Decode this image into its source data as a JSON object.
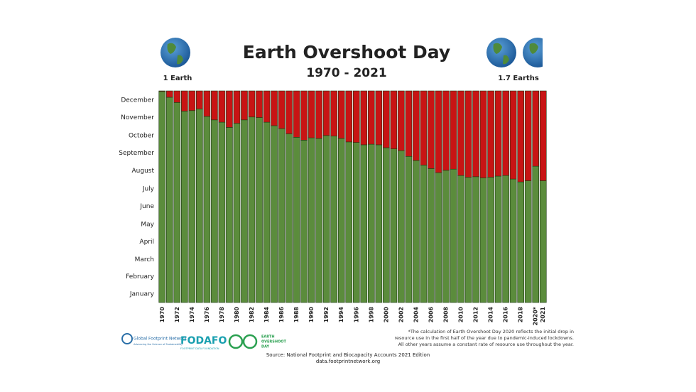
{
  "chart_data": {
    "type": "stacked_bar",
    "title": "Earth Overshoot Day",
    "subtitle": "1970 - 2021",
    "annotations": [
      "1 Earth",
      "1.7 Earths"
    ],
    "footnote": [
      "*The calculation of Earth Overshoot Day 2020 reflects the initial drop in",
      "resource use in the first half of the year due to pandemic-induced lockdowns.",
      "All other years assume a constant rate of resource use throughout the year."
    ],
    "source": [
      "Source: National Footprint and Biocapacity Accounts 2021 Edition",
      "data.footprintnetwork.org"
    ],
    "logos": [
      "Global Footprint Network",
      "Advancing the Science of Sustainability",
      "FODAFO",
      "FOOTPRINT DATA FOUNDATION",
      "EARTH",
      "OVERSHOOT",
      "DAY"
    ],
    "categories": [
      "1970",
      null,
      "1972",
      null,
      "1974",
      null,
      "1976",
      null,
      "1978",
      null,
      "1980",
      null,
      "1982",
      null,
      "1984",
      null,
      "1986",
      null,
      "1988",
      null,
      "1990",
      null,
      "1992",
      null,
      "1994",
      null,
      "1996",
      null,
      "1998",
      null,
      "2000",
      null,
      "2002",
      null,
      "2004",
      null,
      "2006",
      null,
      "2008",
      null,
      "2010",
      null,
      "2012",
      null,
      "2014",
      null,
      "2016",
      null,
      "2018",
      null,
      "2020*",
      "2021"
    ],
    "series": [
      {
        "color": "#5b8c3c",
        "values": [
          364,
          354,
          345,
          330,
          331,
          334,
          321,
          315,
          311,
          302,
          309,
          315,
          320,
          319,
          311,
          305,
          300,
          291,
          285,
          280,
          284,
          283,
          288,
          287,
          283,
          277,
          276,
          272,
          273,
          272,
          267,
          265,
          262,
          252,
          245,
          237,
          231,
          224,
          228,
          230,
          219,
          216,
          217,
          215,
          216,
          218,
          219,
          213,
          208,
          210,
          235,
          210
        ]
      },
      {
        "color": "#c81414",
        "values": [
          1,
          11,
          20,
          35,
          34,
          31,
          44,
          50,
          54,
          63,
          56,
          50,
          45,
          46,
          54,
          60,
          65,
          74,
          80,
          85,
          81,
          82,
          77,
          78,
          82,
          88,
          89,
          93,
          92,
          93,
          98,
          100,
          103,
          113,
          120,
          128,
          134,
          141,
          137,
          135,
          146,
          149,
          148,
          150,
          149,
          147,
          146,
          152,
          157,
          155,
          130,
          155
        ]
      }
    ],
    "ylim": [
      0,
      365
    ],
    "yticks": [
      {
        "value": 15,
        "label": "January"
      },
      {
        "value": 45,
        "label": "February"
      },
      {
        "value": 74,
        "label": "March"
      },
      {
        "value": 105,
        "label": "April"
      },
      {
        "value": 135,
        "label": "May"
      },
      {
        "value": 166,
        "label": "June"
      },
      {
        "value": 196,
        "label": "July"
      },
      {
        "value": 227,
        "label": "August"
      },
      {
        "value": 258,
        "label": "September"
      },
      {
        "value": 288,
        "label": "October"
      },
      {
        "value": 319,
        "label": "November"
      },
      {
        "value": 349,
        "label": "December"
      }
    ],
    "grid": false
  }
}
